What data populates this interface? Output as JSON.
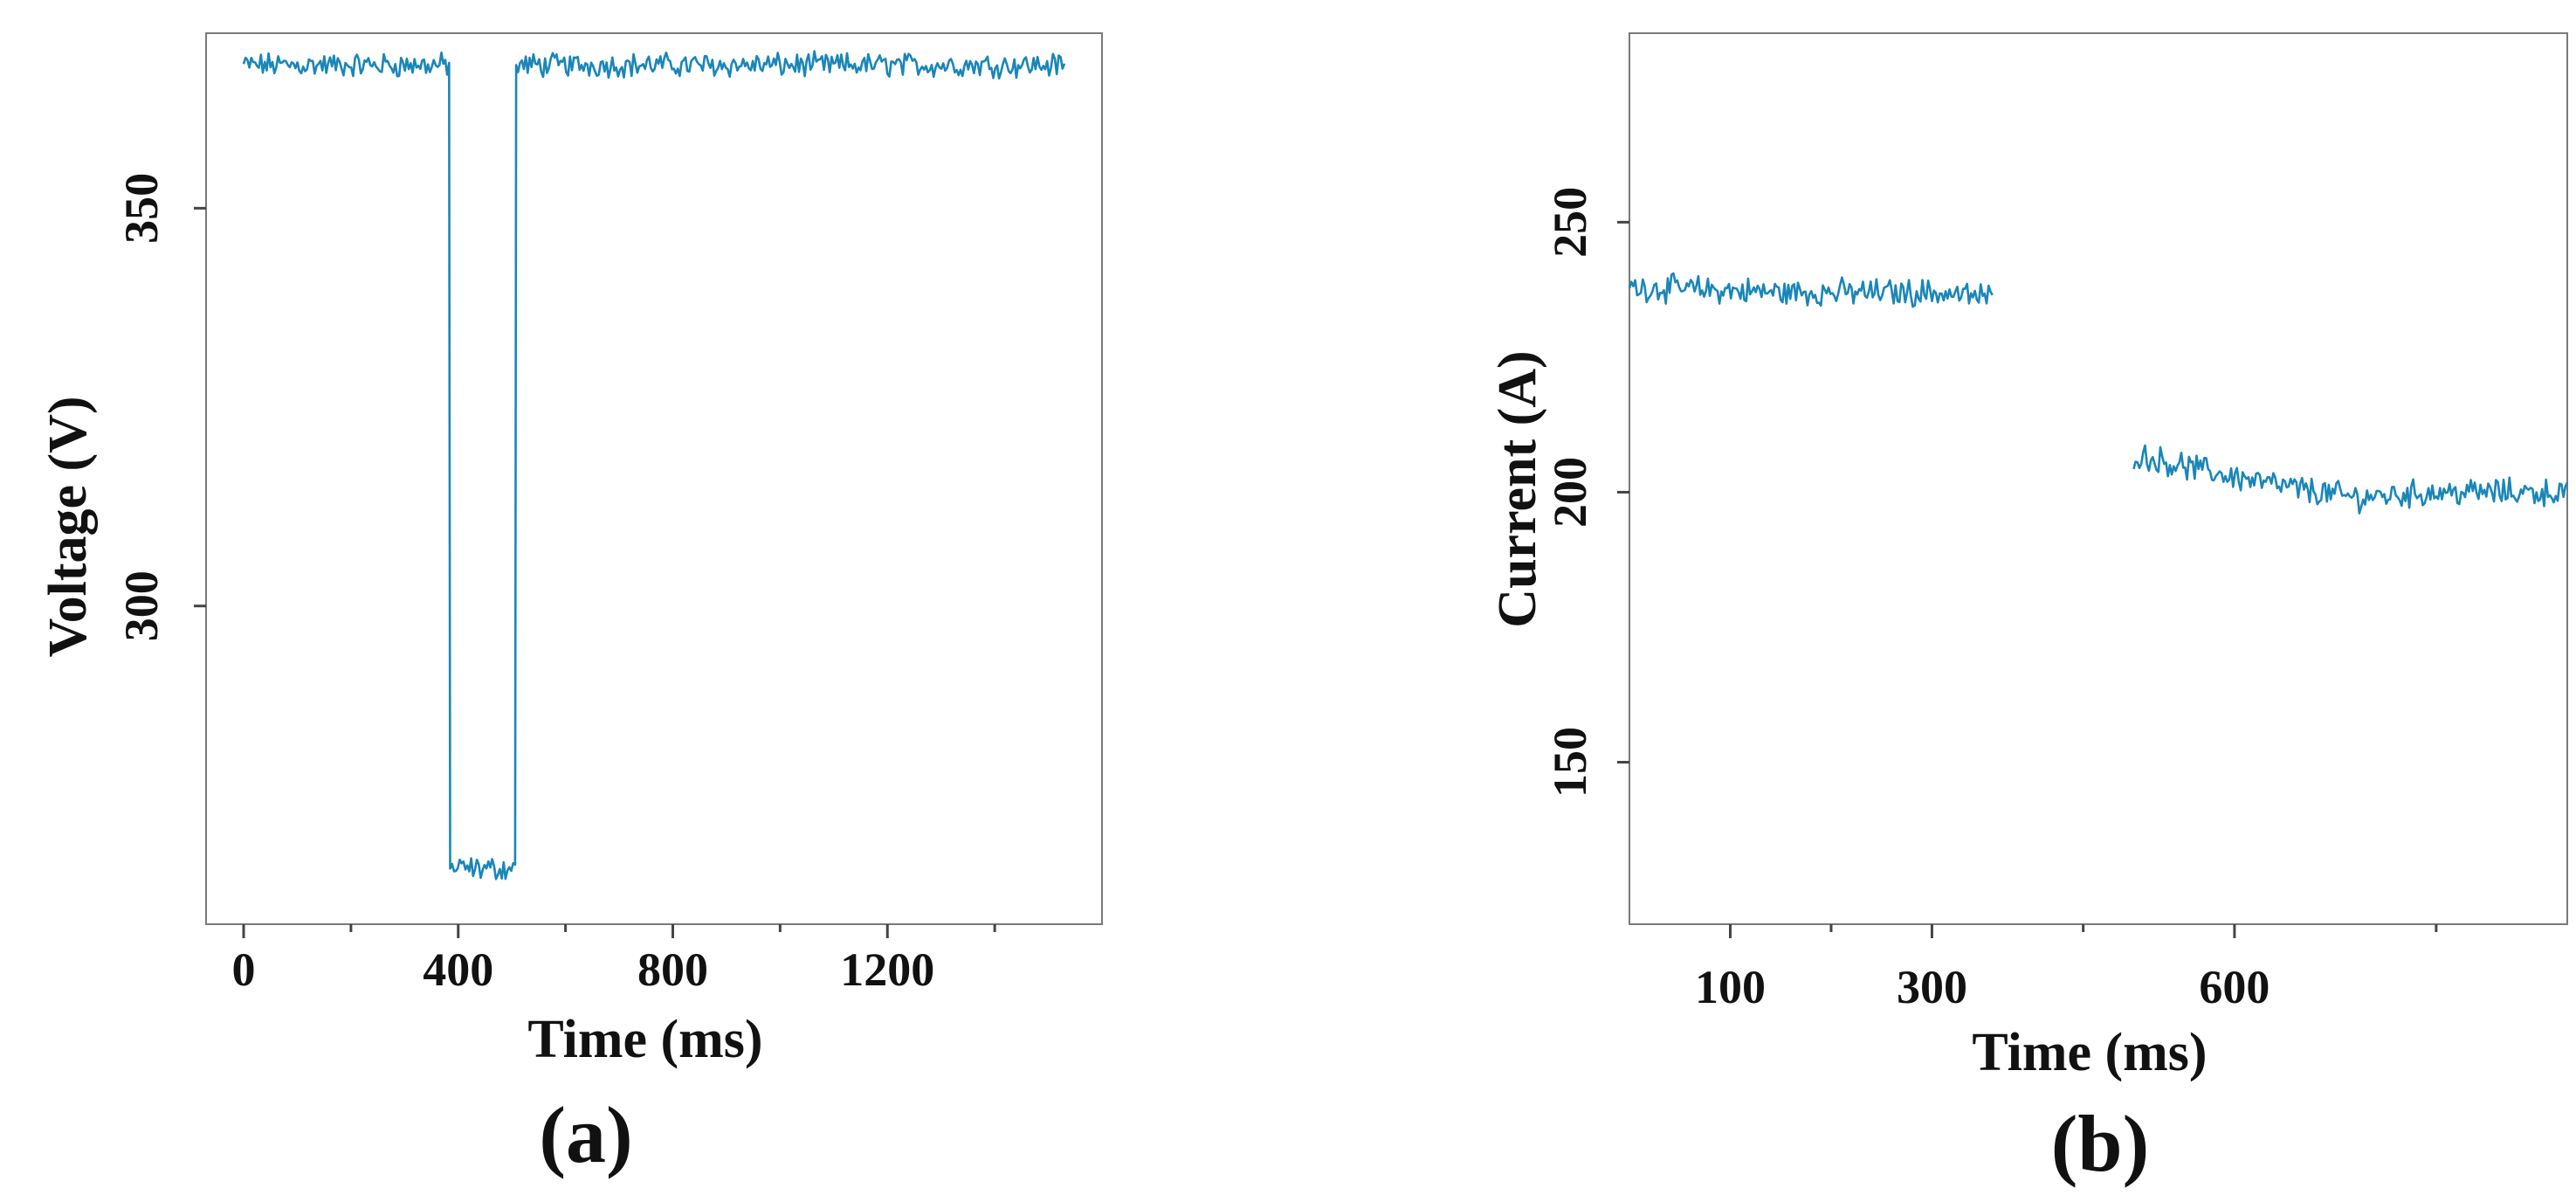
{
  "colors": {
    "trace": "#1a86b8"
  },
  "chart_data": [
    {
      "type": "line",
      "panel_label": "(a)",
      "xlabel": "Time (ms)",
      "ylabel": "Voltage (V)",
      "xlim": [
        -70,
        1600
      ],
      "ylim": [
        260,
        372
      ],
      "xticks": [
        {
          "value": 0,
          "label": "0"
        },
        {
          "value": 400,
          "label": "400"
        },
        {
          "value": 800,
          "label": "800"
        },
        {
          "value": 1200,
          "label": "1200"
        }
      ],
      "xminor": [
        200,
        600,
        1000,
        1400
      ],
      "yticks": [
        {
          "value": 300,
          "label": "300"
        },
        {
          "value": 350,
          "label": "350"
        }
      ],
      "legend": "none",
      "grid": false,
      "series": [
        {
          "x": [
            0,
            383,
            385,
            506,
            508,
            1530
          ],
          "y": [
            368,
            368,
            267,
            267,
            368,
            368
          ],
          "noise": 1.2
        }
      ]
    },
    {
      "type": "line",
      "panel_label": "(b)",
      "xlabel": "Time (ms)",
      "ylabel": "Current (A)",
      "xlim": [
        0,
        930
      ],
      "ylim": [
        120,
        285
      ],
      "xticks": [
        {
          "value": 100,
          "label": "100"
        },
        {
          "value": 300,
          "label": "300"
        },
        {
          "value": 600,
          "label": "600"
        }
      ],
      "xminor": [
        200,
        450,
        800
      ],
      "yticks": [
        {
          "value": 150,
          "label": "150"
        },
        {
          "value": 200,
          "label": "200"
        },
        {
          "value": 250,
          "label": "250"
        }
      ],
      "legend": "none",
      "grid": false,
      "series": [
        {
          "x": [
            0,
            150,
            300,
            360
          ],
          "y": [
            238,
            237,
            237,
            236
          ],
          "noise": 2.0
        },
        {
          "x": [
            500,
            570,
            650,
            720,
            800,
            930
          ],
          "y": [
            207,
            204,
            201,
            199,
            200,
            200
          ],
          "noise": 2.0
        }
      ]
    }
  ]
}
